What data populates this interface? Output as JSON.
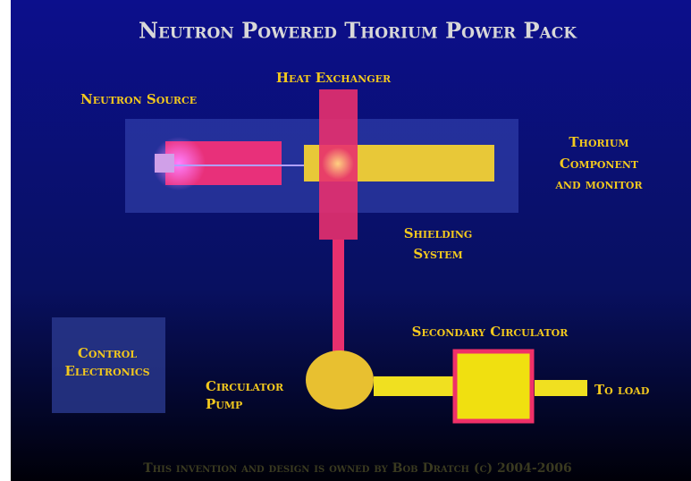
{
  "title": "Neutron Powered Thorium Power Pack",
  "components": [
    {
      "lines": [
        "Neutron Source"
      ]
    },
    {
      "lines": [
        "Heat Exchanger"
      ]
    },
    {
      "lines": [
        "Thorium",
        "Component",
        "and monitor"
      ]
    },
    {
      "lines": [
        "Shielding",
        "System"
      ]
    },
    {
      "lines": [
        "Control",
        "Electronics"
      ]
    },
    {
      "lines": [
        "Circulator",
        "Pump"
      ]
    },
    {
      "lines": [
        "Secondary Circulator"
      ]
    },
    {
      "lines": [
        "To load"
      ]
    }
  ],
  "footer": "This invention and design is owned by Bob Dratch (c) 2004-2006"
}
